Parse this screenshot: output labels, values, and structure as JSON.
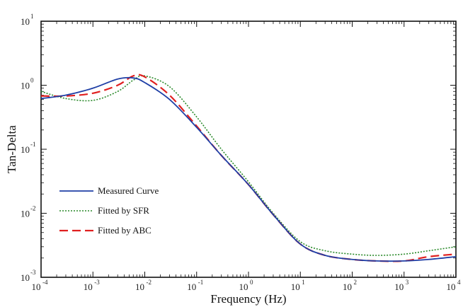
{
  "chart_data": {
    "type": "line",
    "title": "",
    "xlabel": "Frequency (Hz)",
    "ylabel": "Tan-Delta",
    "xscale": "log",
    "yscale": "log",
    "xlim": [
      0.0001,
      10000
    ],
    "ylim": [
      0.001,
      10
    ],
    "x_tick_labels": [
      {
        "base": "10",
        "exp": "-4"
      },
      {
        "base": "10",
        "exp": "-3"
      },
      {
        "base": "10",
        "exp": "-2"
      },
      {
        "base": "10",
        "exp": "-1"
      },
      {
        "base": "10",
        "exp": "0"
      },
      {
        "base": "10",
        "exp": "1"
      },
      {
        "base": "10",
        "exp": "2"
      },
      {
        "base": "10",
        "exp": "3"
      },
      {
        "base": "10",
        "exp": "4"
      }
    ],
    "y_tick_labels": [
      {
        "base": "10",
        "exp": "-3"
      },
      {
        "base": "10",
        "exp": "-2"
      },
      {
        "base": "10",
        "exp": "-1"
      },
      {
        "base": "10",
        "exp": "0"
      },
      {
        "base": "10",
        "exp": "1"
      }
    ],
    "grid": false,
    "legend_position": "bottom-left",
    "series": [
      {
        "name": "Measured Curve",
        "color": "#1f3fa6",
        "dash": "solid",
        "x": [
          0.0001,
          0.0003,
          0.001,
          0.003,
          0.006,
          0.01,
          0.03,
          0.1,
          0.3,
          1,
          3,
          10,
          30,
          100,
          300,
          1000,
          3000,
          10000
        ],
        "y": [
          0.62,
          0.7,
          0.9,
          1.25,
          1.3,
          1.1,
          0.6,
          0.22,
          0.08,
          0.028,
          0.0095,
          0.0033,
          0.0022,
          0.0019,
          0.0018,
          0.0018,
          0.0019,
          0.0021
        ]
      },
      {
        "name": "Fitted by SFR",
        "color": "#2a8a2a",
        "dash": "dotted",
        "x": [
          0.0001,
          0.0003,
          0.001,
          0.003,
          0.006,
          0.01,
          0.03,
          0.1,
          0.3,
          1,
          3,
          10,
          30,
          100,
          300,
          1000,
          3000,
          10000
        ],
        "y": [
          0.8,
          0.62,
          0.58,
          0.8,
          1.2,
          1.4,
          0.95,
          0.32,
          0.1,
          0.031,
          0.01,
          0.0036,
          0.0026,
          0.0023,
          0.0022,
          0.0023,
          0.0026,
          0.003
        ]
      },
      {
        "name": "Fitted by ABC",
        "color": "#e02020",
        "dash": "dashed",
        "x": [
          0.0001,
          0.0003,
          0.001,
          0.003,
          0.006,
          0.01,
          0.03,
          0.1,
          0.3,
          1,
          3,
          10,
          30,
          100,
          300,
          1000,
          3000,
          10000
        ],
        "y": [
          0.68,
          0.68,
          0.75,
          1.0,
          1.4,
          1.35,
          0.7,
          0.23,
          0.08,
          0.028,
          0.0095,
          0.0033,
          0.0022,
          0.0019,
          0.0018,
          0.0018,
          0.0021,
          0.0023
        ]
      }
    ]
  }
}
